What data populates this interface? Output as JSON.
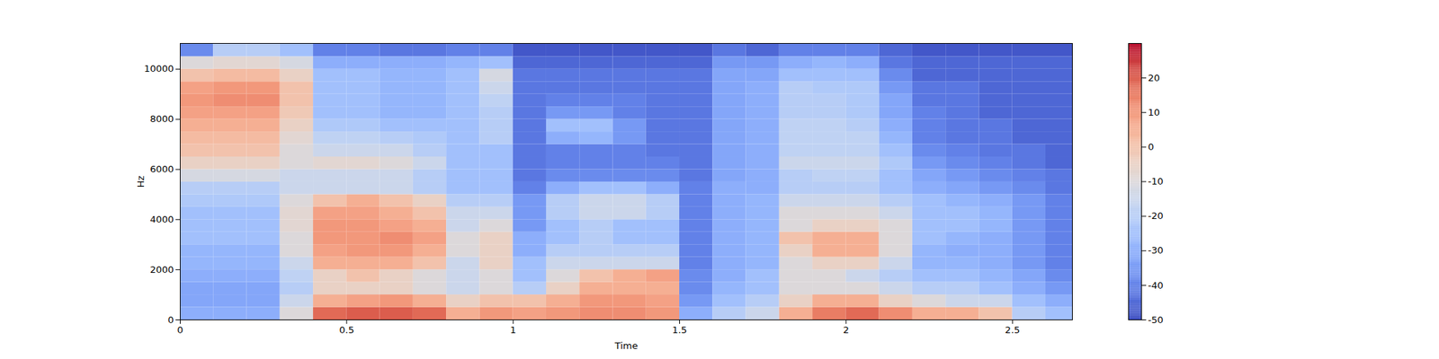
{
  "chart_data": {
    "type": "heatmap",
    "x_label": "Time",
    "y_label": "Hz",
    "xlim": [
      0,
      2.68
    ],
    "ylim": [
      0,
      11025
    ],
    "xticks": [
      0,
      0.5,
      1,
      1.5,
      2,
      2.5
    ],
    "yticks": [
      0,
      2000,
      4000,
      6000,
      8000,
      10000
    ],
    "x": [
      0,
      0.1,
      0.2,
      0.3,
      0.4,
      0.5,
      0.6,
      0.7,
      0.8,
      0.9,
      1.0,
      1.1,
      1.2,
      1.3,
      1.4,
      1.5,
      1.6,
      1.7,
      1.8,
      1.9,
      2.0,
      2.1,
      2.2,
      2.3,
      2.4,
      2.5,
      2.6
    ],
    "y": [
      0,
      500,
      1000,
      1500,
      2000,
      2500,
      3000,
      3500,
      4000,
      4500,
      5000,
      5500,
      6000,
      6500,
      7000,
      7500,
      8000,
      8500,
      9000,
      9500,
      10000,
      10500
    ],
    "values": [
      [
        -30,
        -30,
        -30,
        -10,
        18,
        20,
        20,
        18,
        5,
        10,
        8,
        10,
        12,
        12,
        10,
        -30,
        -20,
        -15,
        5,
        15,
        18,
        12,
        5,
        5,
        0,
        -20,
        -25
      ],
      [
        -32,
        -32,
        -32,
        -15,
        5,
        8,
        10,
        5,
        -5,
        0,
        0,
        5,
        10,
        10,
        8,
        -35,
        -25,
        -20,
        -5,
        5,
        5,
        -5,
        -10,
        -15,
        -15,
        -25,
        -30
      ],
      [
        -32,
        -32,
        -32,
        -20,
        -5,
        -5,
        -5,
        -10,
        -15,
        -10,
        -20,
        -5,
        5,
        5,
        5,
        -38,
        -28,
        -25,
        -10,
        -10,
        -10,
        -15,
        -20,
        -20,
        -25,
        -30,
        -35
      ],
      [
        -30,
        -30,
        -30,
        -18,
        -5,
        0,
        -5,
        -10,
        -15,
        -10,
        -25,
        -10,
        0,
        5,
        8,
        -38,
        -30,
        -25,
        -10,
        -10,
        -15,
        -20,
        -25,
        -25,
        -28,
        -32,
        -38
      ],
      [
        -28,
        -28,
        -28,
        -15,
        5,
        5,
        5,
        0,
        -15,
        -5,
        -25,
        -15,
        -15,
        -15,
        -15,
        -40,
        -30,
        -28,
        -10,
        -5,
        -5,
        -15,
        -28,
        -28,
        -30,
        -35,
        -40
      ],
      [
        -28,
        -28,
        -28,
        -10,
        8,
        10,
        10,
        5,
        -10,
        -5,
        -30,
        -20,
        -20,
        -20,
        -20,
        -40,
        -30,
        -28,
        -5,
        5,
        5,
        -10,
        -28,
        -30,
        -30,
        -35,
        -40
      ],
      [
        -25,
        -25,
        -25,
        -10,
        10,
        10,
        12,
        8,
        -10,
        -5,
        -30,
        -25,
        -20,
        -25,
        -25,
        -40,
        -30,
        -28,
        0,
        5,
        5,
        -10,
        -25,
        -28,
        -30,
        -35,
        -40
      ],
      [
        -25,
        -25,
        -25,
        -8,
        10,
        10,
        8,
        5,
        -15,
        -10,
        -35,
        -25,
        -20,
        -25,
        -25,
        -40,
        -30,
        -28,
        -10,
        -5,
        -5,
        -10,
        -25,
        -25,
        -28,
        -35,
        -40
      ],
      [
        -25,
        -25,
        -25,
        -8,
        8,
        8,
        5,
        0,
        -15,
        -15,
        -35,
        -20,
        -15,
        -15,
        -20,
        -40,
        -30,
        -28,
        -10,
        -10,
        -10,
        -15,
        -25,
        -25,
        -28,
        -35,
        -40
      ],
      [
        -22,
        -22,
        -22,
        -10,
        0,
        5,
        0,
        -5,
        -20,
        -20,
        -35,
        -20,
        -15,
        -15,
        -20,
        -40,
        -30,
        -28,
        -15,
        -15,
        -15,
        -20,
        -25,
        -28,
        -30,
        -35,
        -40
      ],
      [
        -20,
        -20,
        -20,
        -15,
        -15,
        -15,
        -15,
        -20,
        -25,
        -25,
        -40,
        -30,
        -25,
        -25,
        -30,
        -40,
        -30,
        -30,
        -20,
        -20,
        -20,
        -25,
        -30,
        -32,
        -35,
        -38,
        -42
      ],
      [
        -12,
        -12,
        -12,
        -15,
        -15,
        -15,
        -15,
        -20,
        -25,
        -25,
        -42,
        -38,
        -38,
        -38,
        -38,
        -42,
        -32,
        -30,
        -20,
        -18,
        -18,
        -25,
        -32,
        -35,
        -38,
        -40,
        -42
      ],
      [
        -5,
        -5,
        -5,
        -10,
        -8,
        -8,
        -10,
        -15,
        -25,
        -25,
        -42,
        -40,
        -40,
        -40,
        -40,
        -42,
        -32,
        -30,
        -15,
        -15,
        -15,
        -22,
        -35,
        -38,
        -40,
        -42,
        -45
      ],
      [
        0,
        0,
        0,
        -10,
        -15,
        -15,
        -15,
        -20,
        -25,
        -25,
        -42,
        -40,
        -40,
        -40,
        -42,
        -42,
        -32,
        -30,
        -18,
        -18,
        -18,
        -25,
        -38,
        -40,
        -42,
        -42,
        -45
      ],
      [
        2,
        2,
        2,
        -8,
        -18,
        -18,
        -20,
        -22,
        -25,
        -20,
        -42,
        -30,
        -28,
        -35,
        -42,
        -42,
        -32,
        -30,
        -18,
        -18,
        -18,
        -28,
        -40,
        -42,
        -42,
        -45,
        -45
      ],
      [
        5,
        5,
        5,
        -5,
        -22,
        -22,
        -25,
        -25,
        -25,
        -20,
        -42,
        -25,
        -25,
        -35,
        -42,
        -42,
        -32,
        -30,
        -18,
        -18,
        -20,
        -30,
        -40,
        -42,
        -42,
        -45,
        -45
      ],
      [
        8,
        8,
        8,
        -2,
        -25,
        -25,
        -28,
        -28,
        -25,
        -20,
        -42,
        -35,
        -35,
        -40,
        -42,
        -42,
        -32,
        -30,
        -20,
        -20,
        -22,
        -32,
        -40,
        -42,
        -45,
        -45,
        -45
      ],
      [
        10,
        12,
        12,
        0,
        -25,
        -25,
        -28,
        -28,
        -25,
        -18,
        -42,
        -40,
        -40,
        -40,
        -42,
        -42,
        -32,
        -30,
        -20,
        -20,
        -22,
        -32,
        -42,
        -42,
        -45,
        -45,
        -45
      ],
      [
        8,
        10,
        10,
        0,
        -25,
        -25,
        -28,
        -28,
        -25,
        -15,
        -42,
        -42,
        -42,
        -42,
        -42,
        -42,
        -32,
        -30,
        -20,
        -22,
        -22,
        -35,
        -42,
        -42,
        -45,
        -45,
        -45
      ],
      [
        0,
        2,
        2,
        -5,
        -25,
        -25,
        -28,
        -28,
        -25,
        -12,
        -42,
        -42,
        -42,
        -42,
        -42,
        -42,
        -32,
        -32,
        -25,
        -25,
        -25,
        -38,
        -45,
        -45,
        -45,
        -45,
        -45
      ],
      [
        -10,
        -8,
        -8,
        -12,
        -30,
        -30,
        -30,
        -30,
        -28,
        -25,
        -45,
        -45,
        -45,
        -45,
        -45,
        -45,
        -35,
        -35,
        -30,
        -28,
        -30,
        -42,
        -45,
        -45,
        -45,
        -45,
        -45
      ],
      [
        -38,
        -20,
        -20,
        -25,
        -40,
        -40,
        -42,
        -42,
        -40,
        -40,
        -48,
        -48,
        -48,
        -48,
        -48,
        -48,
        -42,
        -45,
        -40,
        -40,
        -40,
        -45,
        -48,
        -48,
        -48,
        -48,
        -48
      ]
    ],
    "colorbar": {
      "range": [
        -50,
        30
      ],
      "ticks": [
        -50,
        -40,
        -30,
        -20,
        -10,
        0,
        10,
        20
      ]
    }
  }
}
